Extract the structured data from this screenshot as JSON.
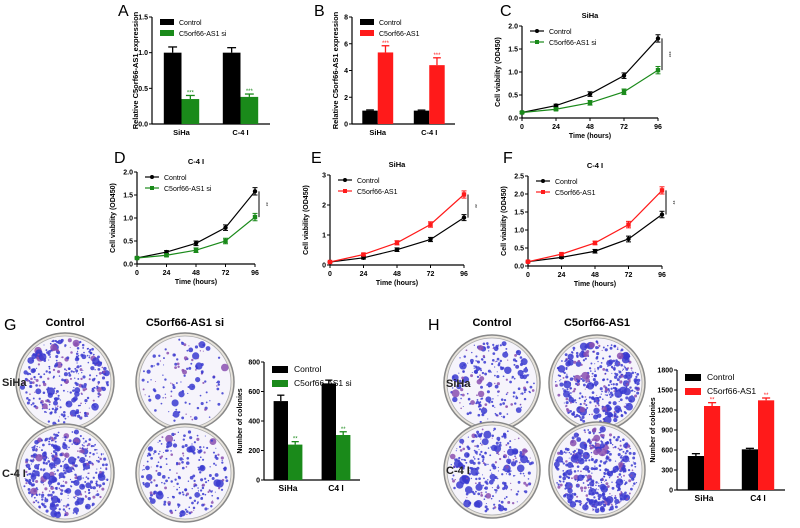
{
  "colors": {
    "control": "#000000",
    "knockdown": "#1a8a1a",
    "overexpress": "#ff1a1a",
    "stain": "#3a3ad0"
  },
  "chart_data": [
    {
      "panel": "A",
      "type": "bar",
      "title": "",
      "categories": [
        "SiHa",
        "C-4 I"
      ],
      "ylabel": "Relative C5orf66-AS1 expression",
      "xlabel": "",
      "ylim": [
        0,
        1.5
      ],
      "yticks": [
        "0.0",
        "0.5",
        "1.0",
        "1.5"
      ],
      "yticks_values": [
        0,
        0.5,
        1.0,
        1.5
      ],
      "legend": "top-left",
      "series": [
        {
          "name": "Control",
          "color": "#000000",
          "values": [
            1.0,
            1.0
          ],
          "errors": [
            0.08,
            0.07
          ]
        },
        {
          "name": "C5orf66-AS1 si",
          "color": "#1a8a1a",
          "values": [
            0.35,
            0.38
          ],
          "errors": [
            0.05,
            0.04
          ],
          "significance": [
            "***",
            "***"
          ]
        }
      ]
    },
    {
      "panel": "B",
      "type": "bar",
      "title": "",
      "categories": [
        "SiHa",
        "C-4 I"
      ],
      "ylabel": "Relative C5orf66-AS1 expression",
      "xlabel": "",
      "ylim": [
        0,
        8
      ],
      "yticks": [
        "0",
        "2",
        "4",
        "6",
        "8"
      ],
      "yticks_values": [
        0,
        2,
        4,
        6,
        8
      ],
      "legend": "top-left",
      "series": [
        {
          "name": "Control",
          "color": "#000000",
          "values": [
            1.0,
            1.0
          ],
          "errors": [
            0.05,
            0.04
          ]
        },
        {
          "name": "C5orf66-AS1",
          "color": "#ff1a1a",
          "values": [
            5.35,
            4.4
          ],
          "errors": [
            0.5,
            0.55
          ],
          "significance": [
            "***",
            "***"
          ]
        }
      ]
    },
    {
      "panel": "C",
      "type": "line",
      "title": "SiHa",
      "x": [
        0,
        24,
        48,
        72,
        96
      ],
      "xticks": [
        "0",
        "24",
        "48",
        "72",
        "96"
      ],
      "xlabel": "Time (hours)",
      "ylabel": "Cell viability (OD450)",
      "ylim": [
        0,
        2.0
      ],
      "yticks": [
        "0.0",
        "0.5",
        "1.0",
        "1.5",
        "2.0"
      ],
      "yticks_values": [
        0,
        0.5,
        1.0,
        1.5,
        2.0
      ],
      "legend": "top-left",
      "significance": "***",
      "series": [
        {
          "name": "Control",
          "color": "#000000",
          "marker": "circle",
          "values": [
            0.12,
            0.27,
            0.52,
            0.92,
            1.73
          ],
          "errors": [
            0.02,
            0.03,
            0.05,
            0.06,
            0.08
          ]
        },
        {
          "name": "C5orf66-AS1 si",
          "color": "#1a8a1a",
          "marker": "square",
          "values": [
            0.12,
            0.19,
            0.33,
            0.57,
            1.04
          ],
          "errors": [
            0.02,
            0.03,
            0.05,
            0.06,
            0.08
          ]
        }
      ]
    },
    {
      "panel": "D",
      "type": "line",
      "title": "C-4 I",
      "x": [
        0,
        24,
        48,
        72,
        96
      ],
      "xticks": [
        "0",
        "24",
        "48",
        "72",
        "96"
      ],
      "xlabel": "Time (hours)",
      "ylabel": "Cell viability (OD450)",
      "ylim": [
        0,
        2.0
      ],
      "yticks": [
        "0.0",
        "0.5",
        "1.0",
        "1.5",
        "2.0"
      ],
      "yticks_values": [
        0,
        0.5,
        1.0,
        1.5,
        2.0
      ],
      "legend": "top-left",
      "significance": "**",
      "series": [
        {
          "name": "Control",
          "color": "#000000",
          "marker": "circle",
          "values": [
            0.13,
            0.26,
            0.45,
            0.79,
            1.58
          ],
          "errors": [
            0.02,
            0.03,
            0.05,
            0.06,
            0.08
          ]
        },
        {
          "name": "C5orf66-AS1 si",
          "color": "#1a8a1a",
          "marker": "square",
          "values": [
            0.13,
            0.19,
            0.3,
            0.5,
            1.02
          ],
          "errors": [
            0.02,
            0.03,
            0.05,
            0.06,
            0.08
          ]
        }
      ]
    },
    {
      "panel": "E",
      "type": "line",
      "title": "SiHa",
      "x": [
        0,
        24,
        48,
        72,
        96
      ],
      "xticks": [
        "0",
        "24",
        "48",
        "72",
        "96"
      ],
      "xlabel": "Time (hours)",
      "ylabel": "Cell viability (OD450)",
      "ylim": [
        0,
        3
      ],
      "yticks": [
        "0",
        "1",
        "2",
        "3"
      ],
      "yticks_values": [
        0,
        1,
        2,
        3
      ],
      "legend": "top-left",
      "significance": "**",
      "series": [
        {
          "name": "Control",
          "color": "#000000",
          "marker": "circle",
          "values": [
            0.1,
            0.24,
            0.51,
            0.85,
            1.58
          ],
          "errors": [
            0.02,
            0.04,
            0.06,
            0.07,
            0.1
          ]
        },
        {
          "name": "C5orf66-AS1",
          "color": "#ff1a1a",
          "marker": "square",
          "values": [
            0.1,
            0.35,
            0.74,
            1.35,
            2.35
          ],
          "errors": [
            0.02,
            0.04,
            0.07,
            0.09,
            0.12
          ]
        }
      ]
    },
    {
      "panel": "F",
      "type": "line",
      "title": "C-4 I",
      "x": [
        0,
        24,
        48,
        72,
        96
      ],
      "xticks": [
        "0",
        "24",
        "48",
        "72",
        "96"
      ],
      "xlabel": "Time (hours)",
      "ylabel": "Cell viability (OD450)",
      "ylim": [
        0,
        2.5
      ],
      "yticks": [
        "0.0",
        "0.5",
        "1.0",
        "1.5",
        "2.0",
        "2.5"
      ],
      "yticks_values": [
        0,
        0.5,
        1.0,
        1.5,
        2.0,
        2.5
      ],
      "legend": "top-left",
      "significance": "**",
      "series": [
        {
          "name": "Control",
          "color": "#000000",
          "marker": "circle",
          "values": [
            0.12,
            0.24,
            0.41,
            0.75,
            1.43
          ],
          "errors": [
            0.02,
            0.03,
            0.05,
            0.08,
            0.09
          ]
        },
        {
          "name": "C5orf66-AS1",
          "color": "#ff1a1a",
          "marker": "square",
          "values": [
            0.12,
            0.33,
            0.64,
            1.15,
            2.1
          ],
          "errors": [
            0.02,
            0.03,
            0.05,
            0.09,
            0.1
          ]
        }
      ]
    },
    {
      "panel": "G",
      "type": "bar",
      "title": "",
      "categories": [
        "SiHa",
        "C4 I"
      ],
      "ylabel": "Number of colonies",
      "xlabel": "",
      "ylim": [
        0,
        800
      ],
      "yticks": [
        "0",
        "200",
        "400",
        "600",
        "800"
      ],
      "yticks_values": [
        0,
        200,
        400,
        600,
        800
      ],
      "legend": "top-left",
      "series": [
        {
          "name": "Control",
          "color": "#000000",
          "values": [
            535,
            655
          ],
          "errors": [
            40,
            22
          ]
        },
        {
          "name": "C5orf66-AS1 si",
          "color": "#1a8a1a",
          "values": [
            240,
            305
          ],
          "errors": [
            20,
            22
          ],
          "significance": [
            "**",
            "**"
          ]
        }
      ]
    },
    {
      "panel": "H",
      "type": "bar",
      "title": "",
      "categories": [
        "SiHa",
        "C4 I"
      ],
      "ylabel": "Number of colonies",
      "xlabel": "",
      "ylim": [
        0,
        1800
      ],
      "yticks": [
        "0",
        "300",
        "600",
        "900",
        "1200",
        "1500",
        "1800"
      ],
      "yticks_values": [
        0,
        300,
        600,
        900,
        1200,
        1500,
        1800
      ],
      "legend": "top-left",
      "series": [
        {
          "name": "Control",
          "color": "#000000",
          "values": [
            510,
            610
          ],
          "errors": [
            35,
            15
          ]
        },
        {
          "name": "C5orf66-AS1",
          "color": "#ff1a1a",
          "values": [
            1260,
            1345
          ],
          "errors": [
            50,
            35
          ],
          "significance": [
            "**",
            "**"
          ]
        }
      ]
    }
  ],
  "colony_panels": [
    {
      "panel": "G",
      "columns": [
        "Control",
        "C5orf66-AS1 si"
      ],
      "rows": [
        "SiHa",
        "C-4 I"
      ],
      "density": [
        [
          0.8,
          0.3
        ],
        [
          1.0,
          0.55
        ]
      ]
    },
    {
      "panel": "H",
      "columns": [
        "Control",
        "C5orf66-AS1"
      ],
      "rows": [
        "SiHa",
        "C-4 I"
      ],
      "density": [
        [
          0.55,
          1.0
        ],
        [
          0.65,
          1.1
        ]
      ]
    }
  ]
}
